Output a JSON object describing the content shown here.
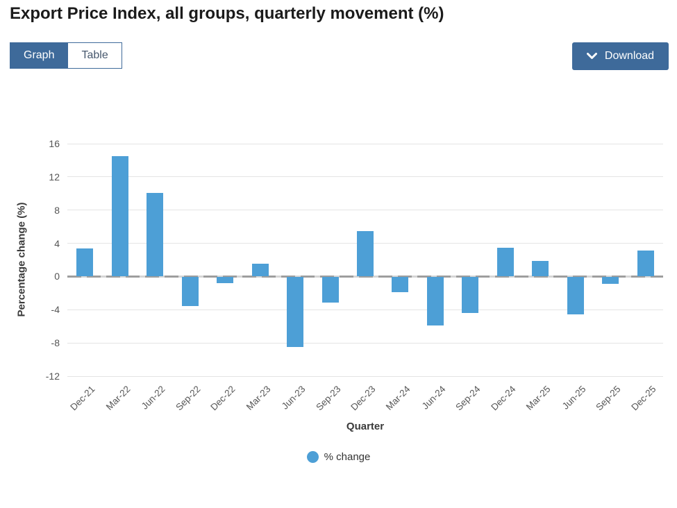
{
  "header": {
    "title": "Export Price Index, all groups, quarterly movement (%)"
  },
  "view_toggle": {
    "graph_label": "Graph",
    "table_label": "Table",
    "active": "Graph"
  },
  "download": {
    "label": "Download",
    "icon": "chevron-down-icon"
  },
  "colors": {
    "accent_blue": "#3e6a9a",
    "bar_blue": "#4d9fd6",
    "zero_line_gray": "#9e9e9e",
    "grid_gray": "#e4e4e4",
    "tick_text": "#545454"
  },
  "chart_data": {
    "type": "bar",
    "title": "Export Price Index, all groups, quarterly movement (%)",
    "categories": [
      "Dec-21",
      "Mar-22",
      "Jun-22",
      "Sep-22",
      "Dec-22",
      "Mar-23",
      "Jun-23",
      "Sep-23",
      "Dec-23",
      "Mar-24",
      "Jun-24",
      "Sep-24",
      "Dec-24",
      "Mar-25",
      "Jun-25",
      "Sep-25",
      "Dec-25"
    ],
    "series": [
      {
        "name": "% change",
        "values": [
          3.4,
          14.5,
          10.1,
          -3.6,
          -0.8,
          1.5,
          -8.5,
          -3.1,
          5.5,
          -1.9,
          -5.9,
          -4.4,
          3.5,
          1.9,
          -4.6,
          -0.9,
          3.1
        ]
      }
    ],
    "xlabel": "Quarter",
    "ylabel": "Percentage change (%)",
    "yticks": [
      16,
      12,
      8,
      4,
      0,
      -4,
      -8,
      -12
    ],
    "ylim": [
      -12,
      16
    ],
    "grid": true,
    "legend_position": "bottom",
    "bar_color": "#4d9fd6"
  }
}
